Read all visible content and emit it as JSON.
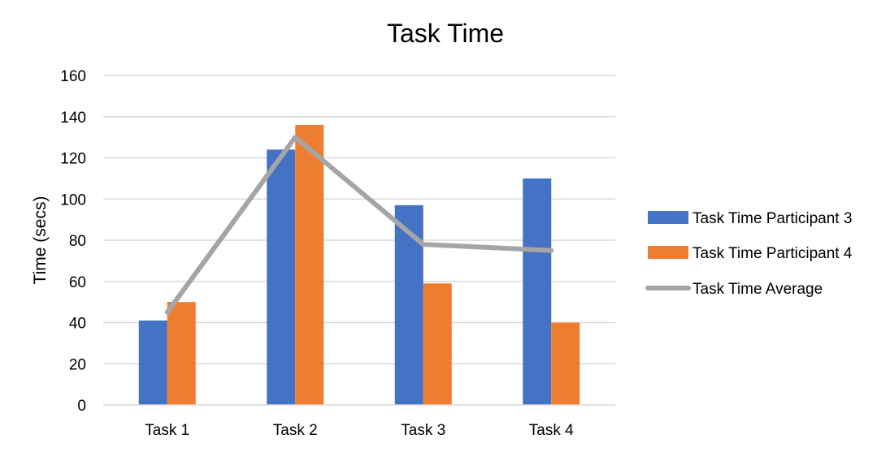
{
  "chart_data": {
    "type": "bar",
    "title": "Task Time",
    "xlabel": "",
    "ylabel": "Time (secs)",
    "ylim": [
      0,
      160
    ],
    "yticks": [
      0,
      20,
      40,
      60,
      80,
      100,
      120,
      140,
      160
    ],
    "categories": [
      "Task 1",
      "Task 2",
      "Task 3",
      "Task 4"
    ],
    "series": [
      {
        "name": "Task Time Participant 3",
        "kind": "bar",
        "color": "#4472C4",
        "values": [
          41,
          124,
          97,
          110
        ]
      },
      {
        "name": "Task Time Participant 4",
        "kind": "bar",
        "color": "#ED7D31",
        "values": [
          50,
          136,
          59,
          40
        ]
      },
      {
        "name": "Task Time Average",
        "kind": "line",
        "color": "#A5A5A5",
        "values": [
          45,
          130,
          78,
          75
        ]
      }
    ],
    "grid": true,
    "legend_position": "right"
  }
}
